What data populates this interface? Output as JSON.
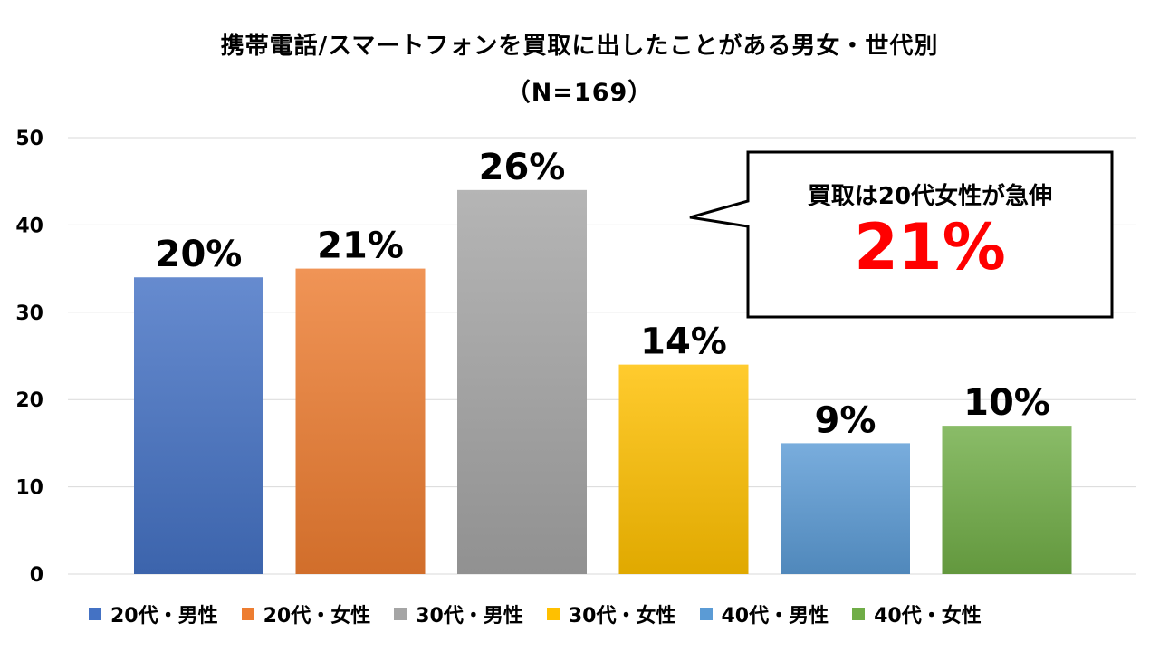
{
  "title": "携帯電話/スマートフォンを買取に出したことがある男女・世代別",
  "subtitle": "（N=169）",
  "callout": {
    "line1": "買取は20代女性が急伸",
    "line2": "21%"
  },
  "chart_data": {
    "type": "bar",
    "categories": [
      "20代・男性",
      "20代・女性",
      "30代・男性",
      "30代・女性",
      "40代・男性",
      "40代・女性"
    ],
    "values": [
      34,
      35,
      44,
      24,
      15,
      17
    ],
    "data_labels": [
      "20%",
      "21%",
      "26%",
      "14%",
      "9%",
      "10%"
    ],
    "colors": [
      "#4472c4",
      "#ed7d31",
      "#a5a5a5",
      "#ffc000",
      "#5b9bd5",
      "#70ad47"
    ],
    "ylim": [
      0,
      50
    ],
    "yticks": [
      0,
      10,
      20,
      30,
      40,
      50
    ],
    "grid": true,
    "legend_position": "bottom"
  }
}
